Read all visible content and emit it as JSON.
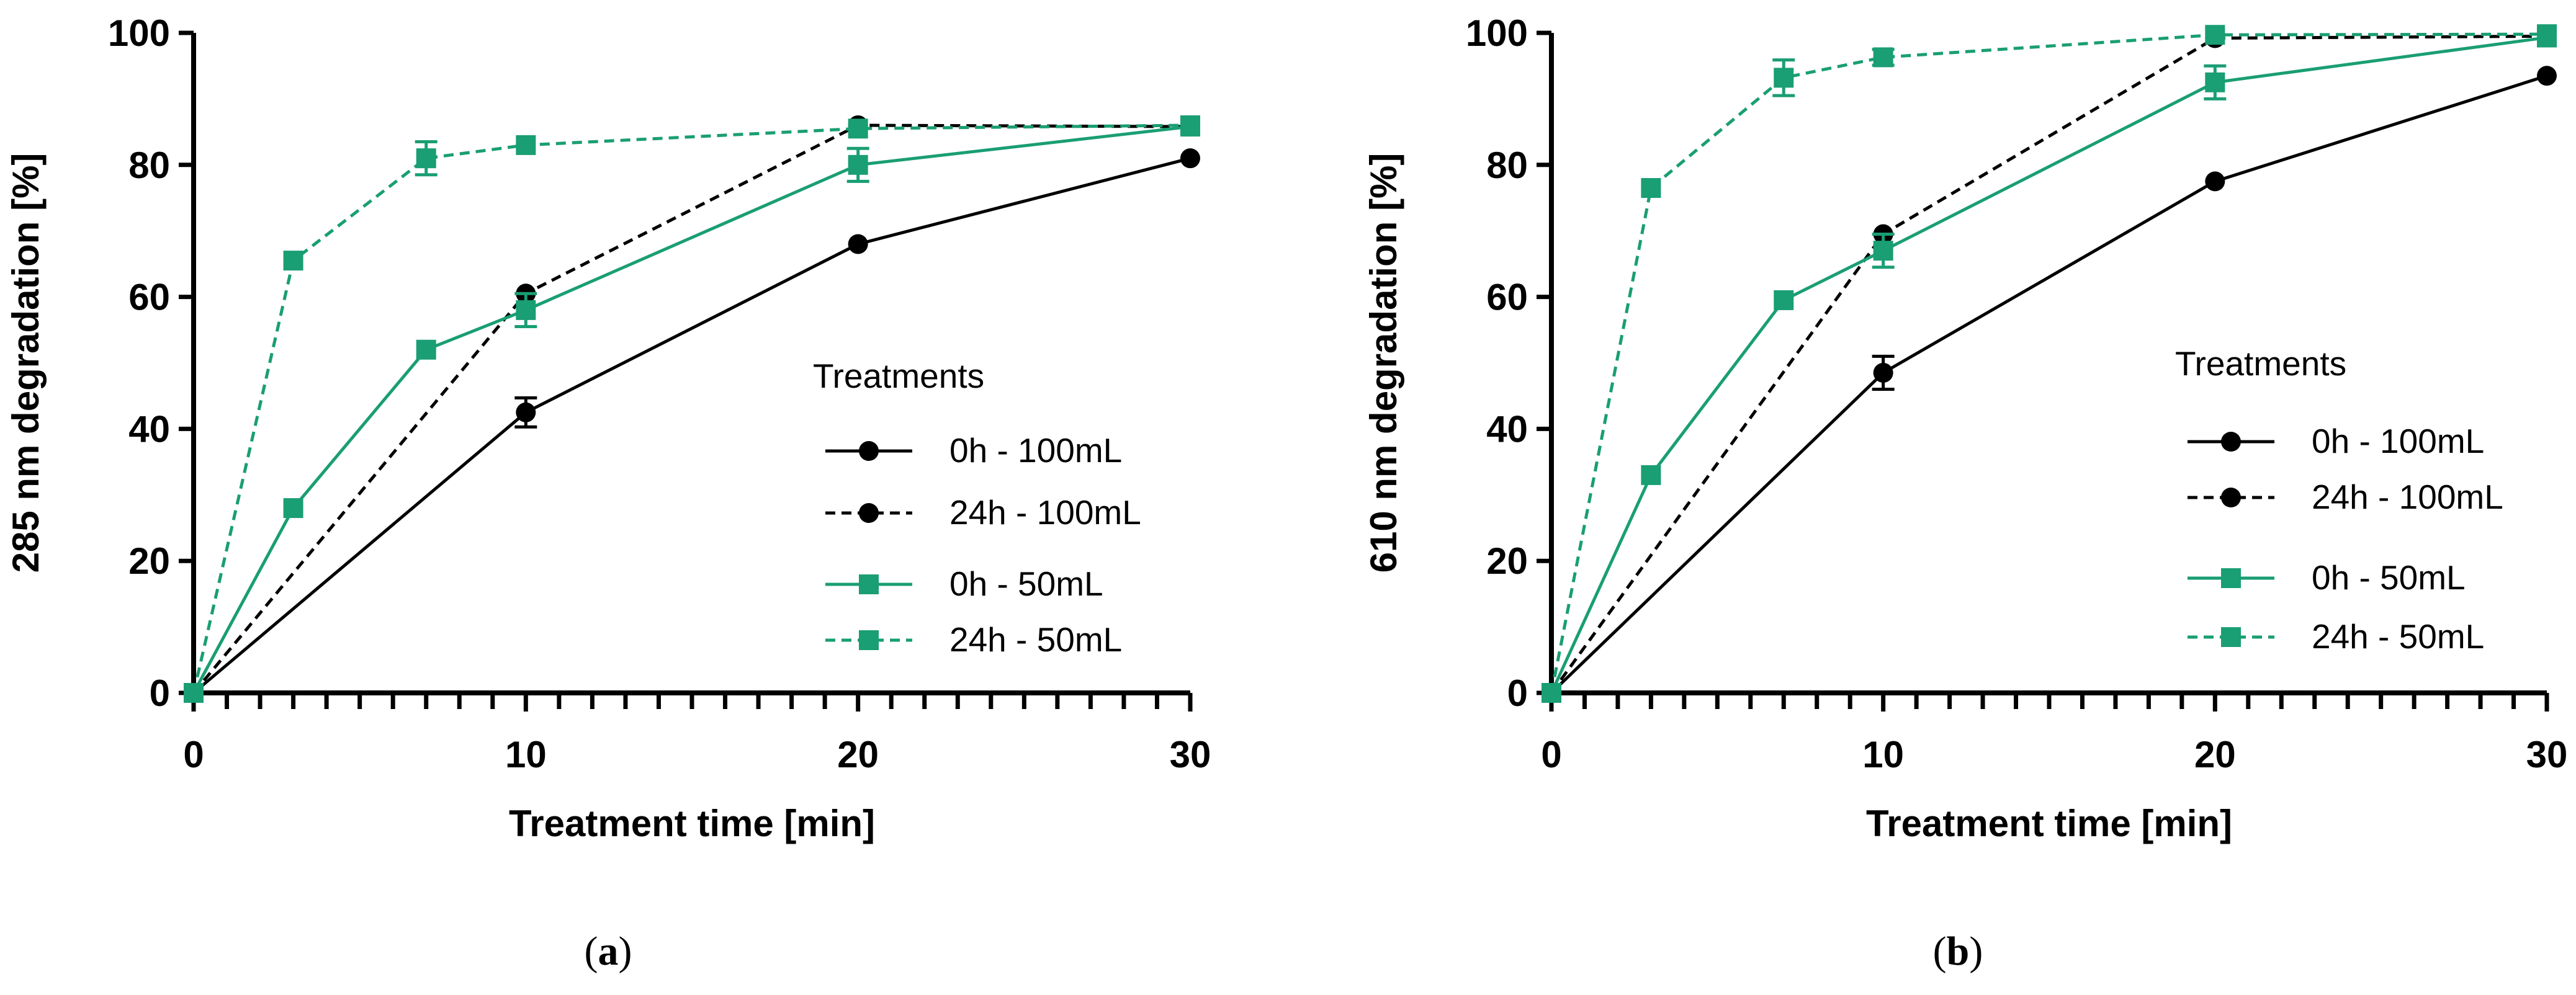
{
  "chart_data": [
    {
      "type": "line",
      "panel_label": "a",
      "xlabel": "Treatment time [min]",
      "ylabel": "285 nm degradation [%]",
      "xlim": [
        0,
        30
      ],
      "ylim": [
        0,
        100
      ],
      "x_ticks": [
        0,
        10,
        20,
        30
      ],
      "y_ticks": [
        0,
        20,
        40,
        60,
        80,
        100
      ],
      "legend": {
        "title": "Treatments",
        "location": "center-right"
      },
      "series": [
        {
          "name": "0h - 100mL",
          "color": "#000000",
          "dashed": false,
          "marker": "circle",
          "x": [
            0,
            10,
            20,
            30
          ],
          "y": [
            0,
            42.5,
            68,
            81
          ],
          "err": [
            0,
            2.2,
            0,
            0
          ]
        },
        {
          "name": "24h - 100mL",
          "color": "#000000",
          "dashed": true,
          "marker": "circle",
          "x": [
            0,
            10,
            20,
            30
          ],
          "y": [
            0,
            60.5,
            86,
            85.8
          ],
          "err": [
            0,
            0,
            0,
            0
          ]
        },
        {
          "name": "0h - 50mL",
          "color": "#1a9e74",
          "dashed": false,
          "marker": "square",
          "x": [
            0,
            3,
            7,
            10,
            20,
            30
          ],
          "y": [
            0,
            28,
            52,
            58,
            80,
            85.8
          ],
          "err": [
            0,
            0,
            0,
            2.5,
            2.5,
            0
          ]
        },
        {
          "name": "24h - 50mL",
          "color": "#1a9e74",
          "dashed": true,
          "marker": "square",
          "x": [
            0,
            3,
            7,
            10,
            20,
            30
          ],
          "y": [
            0,
            65.5,
            81,
            83,
            85.5,
            86
          ],
          "err": [
            0,
            0,
            2.5,
            0,
            0,
            0
          ]
        }
      ]
    },
    {
      "type": "line",
      "panel_label": "b",
      "xlabel": "Treatment time [min]",
      "ylabel": "610 nm degradation [%]",
      "xlim": [
        0,
        30
      ],
      "ylim": [
        0,
        100
      ],
      "x_ticks": [
        0,
        10,
        20,
        30
      ],
      "y_ticks": [
        0,
        20,
        40,
        60,
        80,
        100
      ],
      "legend": {
        "title": "Treatments",
        "location": "center-right"
      },
      "series": [
        {
          "name": "0h - 100mL",
          "color": "#000000",
          "dashed": false,
          "marker": "circle",
          "x": [
            0,
            10,
            20,
            30
          ],
          "y": [
            0,
            48.5,
            77.5,
            93.5
          ],
          "err": [
            0,
            2.5,
            0,
            0
          ]
        },
        {
          "name": "24h - 100mL",
          "color": "#000000",
          "dashed": true,
          "marker": "circle",
          "x": [
            0,
            10,
            20,
            30
          ],
          "y": [
            0,
            69.5,
            99.2,
            99.5
          ],
          "err": [
            0,
            0,
            0,
            0
          ]
        },
        {
          "name": "0h - 50mL",
          "color": "#1a9e74",
          "dashed": false,
          "marker": "square",
          "x": [
            0,
            3,
            7,
            10,
            20,
            30
          ],
          "y": [
            0,
            33,
            59.5,
            67,
            92.5,
            99.3
          ],
          "err": [
            0,
            0,
            0,
            2.5,
            2.5,
            0
          ]
        },
        {
          "name": "24h - 50mL",
          "color": "#1a9e74",
          "dashed": true,
          "marker": "square",
          "x": [
            0,
            3,
            7,
            10,
            20,
            30
          ],
          "y": [
            0,
            76.5,
            93.2,
            96.3,
            99.7,
            99.8
          ],
          "err": [
            0,
            0,
            2.7,
            1.2,
            0,
            0
          ]
        }
      ]
    }
  ]
}
